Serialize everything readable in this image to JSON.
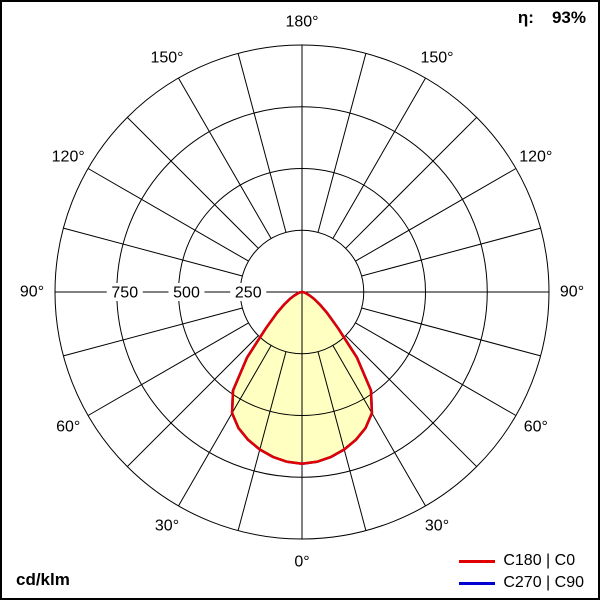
{
  "header": {
    "efficiency_label": "η:",
    "efficiency_value": "93%"
  },
  "footer": {
    "unit_label": "cd/klm"
  },
  "legend": {
    "items": [
      {
        "label": "C180 | C0",
        "color": "#e00000"
      },
      {
        "label": "C270 | C90",
        "color": "#0000d0"
      }
    ]
  },
  "chart_data": {
    "type": "polar",
    "subtype": "luminous-intensity-distribution",
    "unit": "cd/klm",
    "efficiency_percent": 93,
    "angle_ticks_deg": [
      0,
      30,
      60,
      90,
      120,
      150,
      180
    ],
    "angle_tick_labels": [
      "0°",
      "30°",
      "60°",
      "90°",
      "120°",
      "150°",
      "180°"
    ],
    "grid_spoke_step_deg": 15,
    "radial_ticks": [
      250,
      500,
      750
    ],
    "radial_max": 1000,
    "grid_color": "#000000",
    "fill_color": "#ffffc2",
    "legend_position": "bottom-right",
    "series": [
      {
        "name": "C180 | C0",
        "color": "#e00000",
        "gamma_deg": [
          0,
          5,
          10,
          15,
          20,
          25,
          30,
          35,
          40,
          45,
          50,
          55,
          60,
          65,
          70,
          75,
          80,
          85,
          90
        ],
        "values": [
          695,
          690,
          678,
          660,
          637,
          608,
          566,
          487,
          345,
          205,
          133,
          88,
          57,
          36,
          22,
          13,
          7,
          3,
          0
        ]
      },
      {
        "name": "C270 | C90",
        "color": "#0000d0",
        "gamma_deg": [
          0,
          5,
          10,
          15,
          20,
          25,
          30,
          35,
          40,
          45,
          50,
          55,
          60,
          65,
          70,
          75,
          80,
          85,
          90
        ],
        "values": [
          695,
          690,
          678,
          660,
          637,
          608,
          566,
          487,
          345,
          205,
          133,
          88,
          57,
          36,
          22,
          13,
          7,
          3,
          0
        ]
      }
    ]
  }
}
